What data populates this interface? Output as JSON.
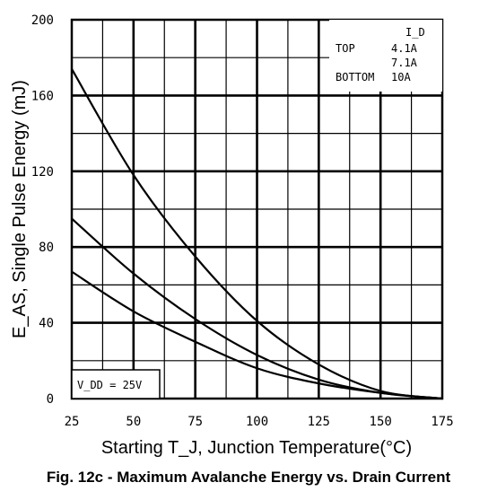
{
  "chart_data": {
    "type": "line",
    "title": "",
    "xlabel": "Starting T_J, Junction Temperature(°C)",
    "ylabel": "E_AS, Single Pulse Energy (mJ)",
    "xlim": [
      25,
      175
    ],
    "ylim": [
      0,
      200
    ],
    "xticks": [
      "25",
      "50",
      "75",
      "100",
      "125",
      "150",
      "175"
    ],
    "yticks": [
      "0",
      "40",
      "80",
      "120",
      "160",
      "200"
    ],
    "grid": true,
    "legend": {
      "header": "I_D",
      "rows": [
        {
          "label": "TOP",
          "value": "4.1A"
        },
        {
          "label": "",
          "value": "7.1A"
        },
        {
          "label": "BOTTOM",
          "value": "10A"
        }
      ],
      "placement": "top-right"
    },
    "annotation": "V_DD = 25V",
    "series": [
      {
        "name": "4.1A",
        "x": [
          25,
          50,
          75,
          100,
          125,
          150,
          175
        ],
        "y": [
          174,
          118,
          75,
          41,
          18,
          4,
          0
        ]
      },
      {
        "name": "7.1A",
        "x": [
          25,
          50,
          75,
          100,
          125,
          150,
          175
        ],
        "y": [
          95,
          66,
          42,
          23,
          10,
          3,
          0
        ]
      },
      {
        "name": "10A",
        "x": [
          25,
          50,
          75,
          100,
          125,
          150,
          175
        ],
        "y": [
          67,
          46,
          30,
          16,
          8,
          3,
          0
        ]
      }
    ],
    "caption": "Fig. 12c - Maximum Avalanche Energy vs. Drain Current"
  }
}
